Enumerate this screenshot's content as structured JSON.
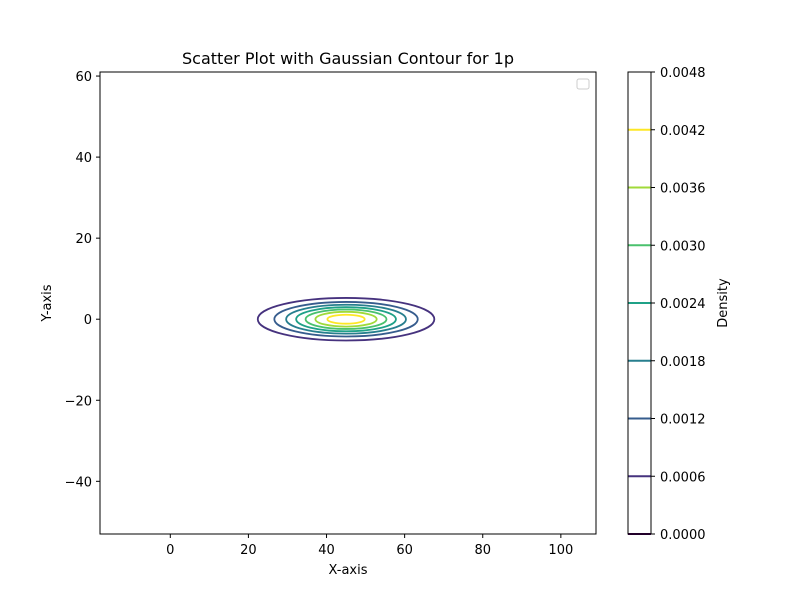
{
  "chart_data": {
    "type": "contour",
    "title": "Scatter Plot with Gaussian Contour for 1p",
    "xlabel": "X-axis",
    "ylabel": "Y-axis",
    "xlim": [
      -18,
      109
    ],
    "ylim": [
      -53,
      61
    ],
    "xticks": [
      0,
      20,
      40,
      60,
      80,
      100
    ],
    "xtick_labels": [
      "0",
      "20",
      "40",
      "60",
      "80",
      "100"
    ],
    "yticks": [
      -40,
      -20,
      0,
      20,
      40,
      60
    ],
    "ytick_labels": [
      "−40",
      "−20",
      "0",
      "20",
      "40",
      "60"
    ],
    "grid": false,
    "legend": {
      "placement": "top-right",
      "entries": []
    },
    "gaussian": {
      "center": [
        45,
        0
      ],
      "sigma_x": 11.2,
      "sigma_y": 2.6,
      "peak_density": 0.0046
    },
    "contour_levels": [
      0.0006,
      0.0012,
      0.0018,
      0.0024,
      0.003,
      0.0036,
      0.0042
    ],
    "colorbar": {
      "label": "Density",
      "range": [
        0.0,
        0.0048
      ],
      "ticks": [
        0.0,
        0.0006,
        0.0012,
        0.0018,
        0.0024,
        0.003,
        0.0036,
        0.0042,
        0.0048
      ],
      "tick_labels": [
        "0.0000",
        "0.0006",
        "0.0012",
        "0.0018",
        "0.0024",
        "0.0030",
        "0.0036",
        "0.0042",
        "0.0048"
      ],
      "level_colors": [
        "#440154",
        "#46327e",
        "#365c8d",
        "#277f8e",
        "#1fa187",
        "#4ac16d",
        "#a0da39",
        "#fde725"
      ]
    }
  }
}
